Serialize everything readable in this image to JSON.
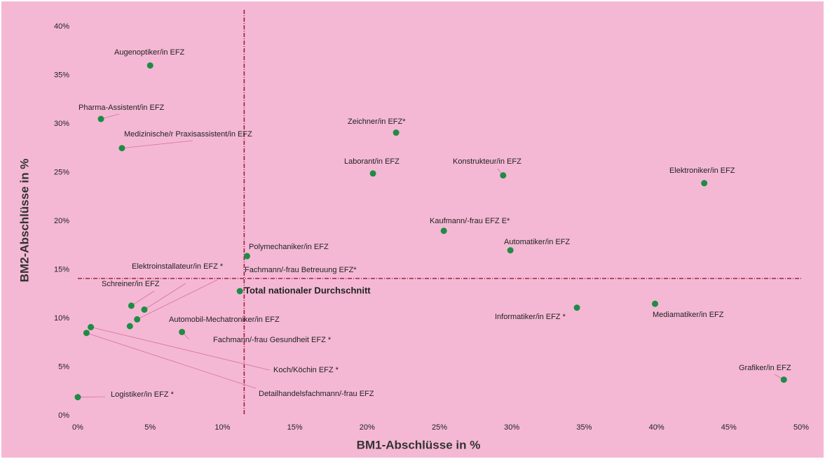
{
  "chart_data": {
    "type": "scatter",
    "x_label": "BM1-Abschlüsse in %",
    "y_label": "BM2-Abschlüsse in %",
    "color": "#1e8c45",
    "reference_color": "#a0203f",
    "reference_x": 11.5,
    "reference_y": 14.1,
    "xlim": [
      0,
      50
    ],
    "ylim": [
      0,
      40
    ],
    "xticks": [
      {
        "value": 0,
        "label": "0%"
      },
      {
        "value": 5,
        "label": "5%"
      },
      {
        "value": 10,
        "label": "10%"
      },
      {
        "value": 15,
        "label": "15%"
      },
      {
        "value": 20,
        "label": "20%"
      },
      {
        "value": 25,
        "label": "25%"
      },
      {
        "value": 30,
        "label": "30%"
      },
      {
        "value": 35,
        "label": "35%"
      },
      {
        "value": 40,
        "label": "40%"
      },
      {
        "value": 45,
        "label": "45%"
      },
      {
        "value": 50,
        "label": "50%"
      }
    ],
    "yticks": [
      {
        "value": 0,
        "label": "0%"
      },
      {
        "value": 5,
        "label": "5%"
      },
      {
        "value": 10,
        "label": "10%"
      },
      {
        "value": 15,
        "label": "15%"
      },
      {
        "value": 20,
        "label": "20%"
      },
      {
        "value": 25,
        "label": "25%"
      },
      {
        "value": 30,
        "label": "30%"
      },
      {
        "value": 35,
        "label": "35%"
      },
      {
        "value": 40,
        "label": "40%"
      }
    ],
    "points": [
      {
        "label": "Augenoptiker/in EFZ",
        "x": 5.0,
        "y": 36.0
      },
      {
        "label": "Pharma-Assistent/in EFZ",
        "x": 1.6,
        "y": 30.5
      },
      {
        "label": "Medizinische/r Praxisassistent/in EFZ",
        "x": 3.05,
        "y": 27.5
      },
      {
        "label": "Zeichner/in EFZ*",
        "x": 22.0,
        "y": 29.1
      },
      {
        "label": "Laborant/in EFZ",
        "x": 20.4,
        "y": 24.9
      },
      {
        "label": "Konstrukteur/in EFZ",
        "x": 29.4,
        "y": 24.7
      },
      {
        "label": "Elektroniker/in EFZ",
        "x": 43.3,
        "y": 23.9
      },
      {
        "label": "Kaufmann/-frau EFZ E*",
        "x": 25.3,
        "y": 19.0
      },
      {
        "label": "Automatiker/in EFZ",
        "x": 29.9,
        "y": 17.0
      },
      {
        "label": "Polymechaniker/in EFZ",
        "x": 11.7,
        "y": 16.4
      },
      {
        "label": "Elektroinstallateur/in EFZ *",
        "x": 4.6,
        "y": 10.9
      },
      {
        "label": "Fachmann/-frau Betreuung EFZ*",
        "x": 4.1,
        "y": 9.9
      },
      {
        "label": "Total nationaler Durchschnitt",
        "x": 11.2,
        "y": 12.8
      },
      {
        "label": "Schreiner/in EFZ",
        "x": 3.7,
        "y": 11.3
      },
      {
        "label": "Automobil-Mechatroniker/in EFZ",
        "x": 3.6,
        "y": 9.2
      },
      {
        "label": "Fachmann/-frau Gesundheit EFZ *",
        "x": 7.2,
        "y": 8.6
      },
      {
        "label": "Informatiker/in EFZ *",
        "x": 34.5,
        "y": 11.1
      },
      {
        "label": "Mediamatiker/in EFZ",
        "x": 39.9,
        "y": 11.5
      },
      {
        "label": "Koch/Köchin EFZ *",
        "x": 0.9,
        "y": 9.1
      },
      {
        "label": "Detailhandelsfachmann/-frau EFZ",
        "x": 0.6,
        "y": 8.5
      },
      {
        "label": "Grafiker/in EFZ",
        "x": 48.8,
        "y": 3.7
      },
      {
        "label": "Logistiker/in EFZ *",
        "x": 0.0,
        "y": 1.9
      }
    ]
  }
}
